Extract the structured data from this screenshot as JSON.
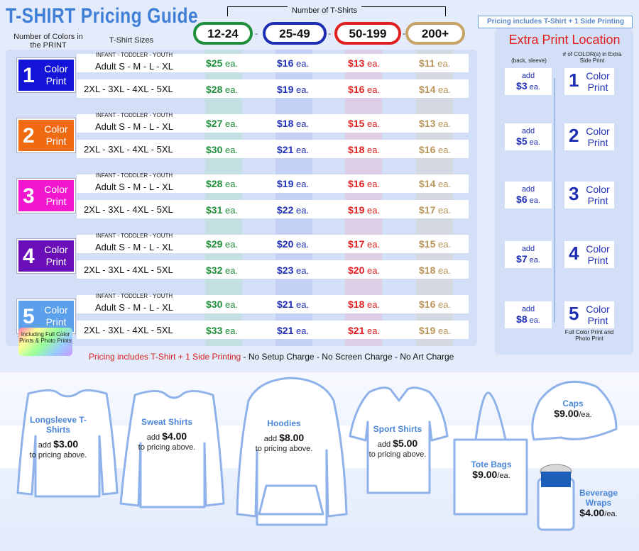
{
  "title": "T-SHIRT Pricing Guide",
  "headers": {
    "colors": "Number of Colors in the PRINT",
    "sizes": "T-Shirt Sizes",
    "qty": "Number of T-Shirts"
  },
  "tiers": [
    {
      "label": "12-24",
      "color": "#1e8f3a"
    },
    {
      "label": "25-49",
      "color": "#1f2fb4"
    },
    {
      "label": "50-199",
      "color": "#e01f1f"
    },
    {
      "label": "200+",
      "color": "#b8955a"
    }
  ],
  "size_line_small": "INFANT - TODDLER - YOUTH",
  "size_line_adult": "Adult  S - M - L - XL",
  "size_line_xl": "2XL - 3XL - 4XL - 5XL",
  "ea": "ea.",
  "rows": [
    {
      "n": "1",
      "word1": "Color",
      "word2": "Print",
      "bg": "#1414d8",
      "adult": [
        "$25",
        "$16",
        "$13",
        "$11"
      ],
      "xl": [
        "$28",
        "$19",
        "$16",
        "$14"
      ]
    },
    {
      "n": "2",
      "word1": "Color",
      "word2": "Print",
      "bg": "#f06a12",
      "adult": [
        "$27",
        "$18",
        "$15",
        "$13"
      ],
      "xl": [
        "$30",
        "$21",
        "$18",
        "$16"
      ]
    },
    {
      "n": "3",
      "word1": "Color",
      "word2": "Print",
      "bg": "#f217cf",
      "adult": [
        "$28",
        "$19",
        "$16",
        "$14"
      ],
      "xl": [
        "$31",
        "$22",
        "$19",
        "$17"
      ]
    },
    {
      "n": "4",
      "word1": "Color",
      "word2": "Print",
      "bg": "#6a0fb8",
      "adult": [
        "$29",
        "$20",
        "$17",
        "$15"
      ],
      "xl": [
        "$32",
        "$23",
        "$20",
        "$18"
      ]
    },
    {
      "n": "5",
      "word1": "Color",
      "word2": "Print",
      "bg": "#5aa0ea",
      "adult": [
        "$30",
        "$21",
        "$18",
        "$16"
      ],
      "xl": [
        "$33",
        "$21",
        "$21",
        "$19"
      ]
    }
  ],
  "fullcolor": "Including Full Color Prints & Photo Prints",
  "bottom_note_red": "Pricing includes T-Shirt + 1 Side Printing",
  "bottom_note_rest": " - No Setup Charge - No Screen Charge - No Art Charge",
  "side": {
    "tag": "Pricing includes T-Shirt + 1 Side Printing",
    "title": "Extra Print Location",
    "sub_left": "(back, sleeve)",
    "sub_right": "# of COLOR(s) in Extra Side Print",
    "add": "add",
    "items": [
      {
        "price": "$3",
        "n": "1"
      },
      {
        "price": "$5",
        "n": "2"
      },
      {
        "price": "$6",
        "n": "3"
      },
      {
        "price": "$7",
        "n": "4"
      },
      {
        "price": "$8",
        "n": "5"
      }
    ],
    "word1": "Color",
    "word2": "Print",
    "fullnote": "Full Color Print and Photo Print"
  },
  "garments": [
    {
      "name": "Longsleeve T-Shirts",
      "add": "add",
      "price": "$3.00",
      "rest": "to pricing above."
    },
    {
      "name": "Sweat Shirts",
      "add": "add",
      "price": "$4.00",
      "rest": "to pricing above."
    },
    {
      "name": "Hoodies",
      "add": "add",
      "price": "$8.00",
      "rest": "to pricing above."
    },
    {
      "name": "Sport Shirts",
      "add": "add",
      "price": "$5.00",
      "rest": "to pricing above."
    }
  ],
  "extras": [
    {
      "name": "Tote Bags",
      "price": "$9.00",
      "unit": "/ea."
    },
    {
      "name": "Caps",
      "price": "$9.00",
      "unit": "/ea."
    },
    {
      "name": "Beverage Wraps",
      "price": "$4.00",
      "unit": "/ea."
    }
  ]
}
